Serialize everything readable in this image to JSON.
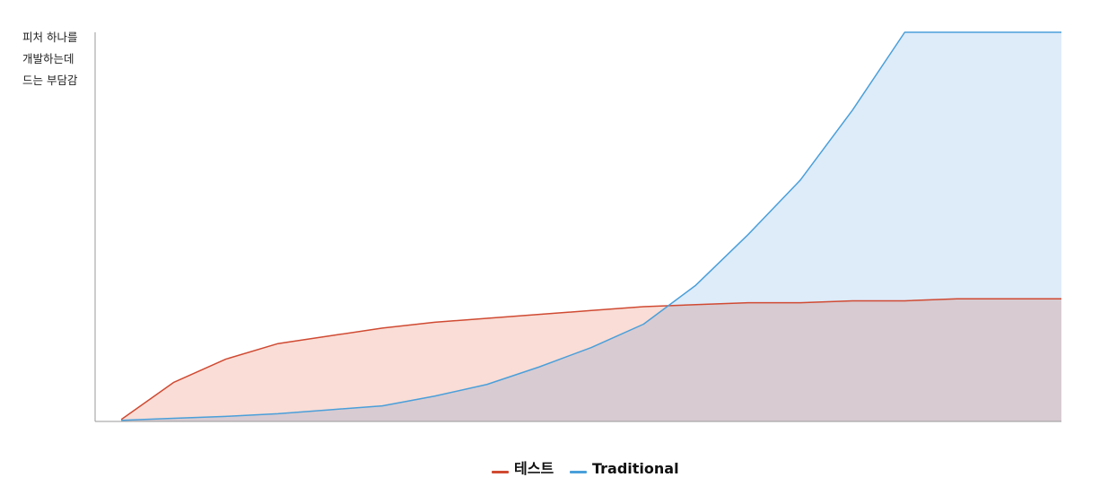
{
  "chart_data": {
    "type": "area",
    "title": "",
    "xlabel": "",
    "ylabel_lines": [
      "피처 하나를",
      "개발하는데",
      "드는 부담감"
    ],
    "x": [
      0,
      1,
      2,
      3,
      4,
      5,
      6,
      7,
      8,
      9,
      10,
      11,
      12,
      13,
      14,
      15,
      16,
      17,
      18
    ],
    "xlim": [
      -0.5,
      18
    ],
    "ylim": [
      0,
      100
    ],
    "grid": false,
    "legend_position": "bottom-center",
    "series": [
      {
        "name": "테스트",
        "color": "#d04a32",
        "fill": "#f9ddd6",
        "values": [
          0.5,
          10,
          16,
          20,
          22,
          24,
          25.5,
          26.5,
          27.5,
          28.5,
          29.5,
          30,
          30.5,
          30.5,
          31,
          31,
          31.5,
          31.5,
          31.5
        ]
      },
      {
        "name": "Traditional",
        "color": "#4a9fda",
        "fill": "#d8e8f8",
        "values": [
          0.3,
          0.8,
          1.3,
          2,
          3,
          4,
          6.5,
          9.5,
          14,
          19,
          25,
          35,
          48,
          62,
          80,
          100,
          100,
          100,
          100
        ]
      }
    ]
  }
}
